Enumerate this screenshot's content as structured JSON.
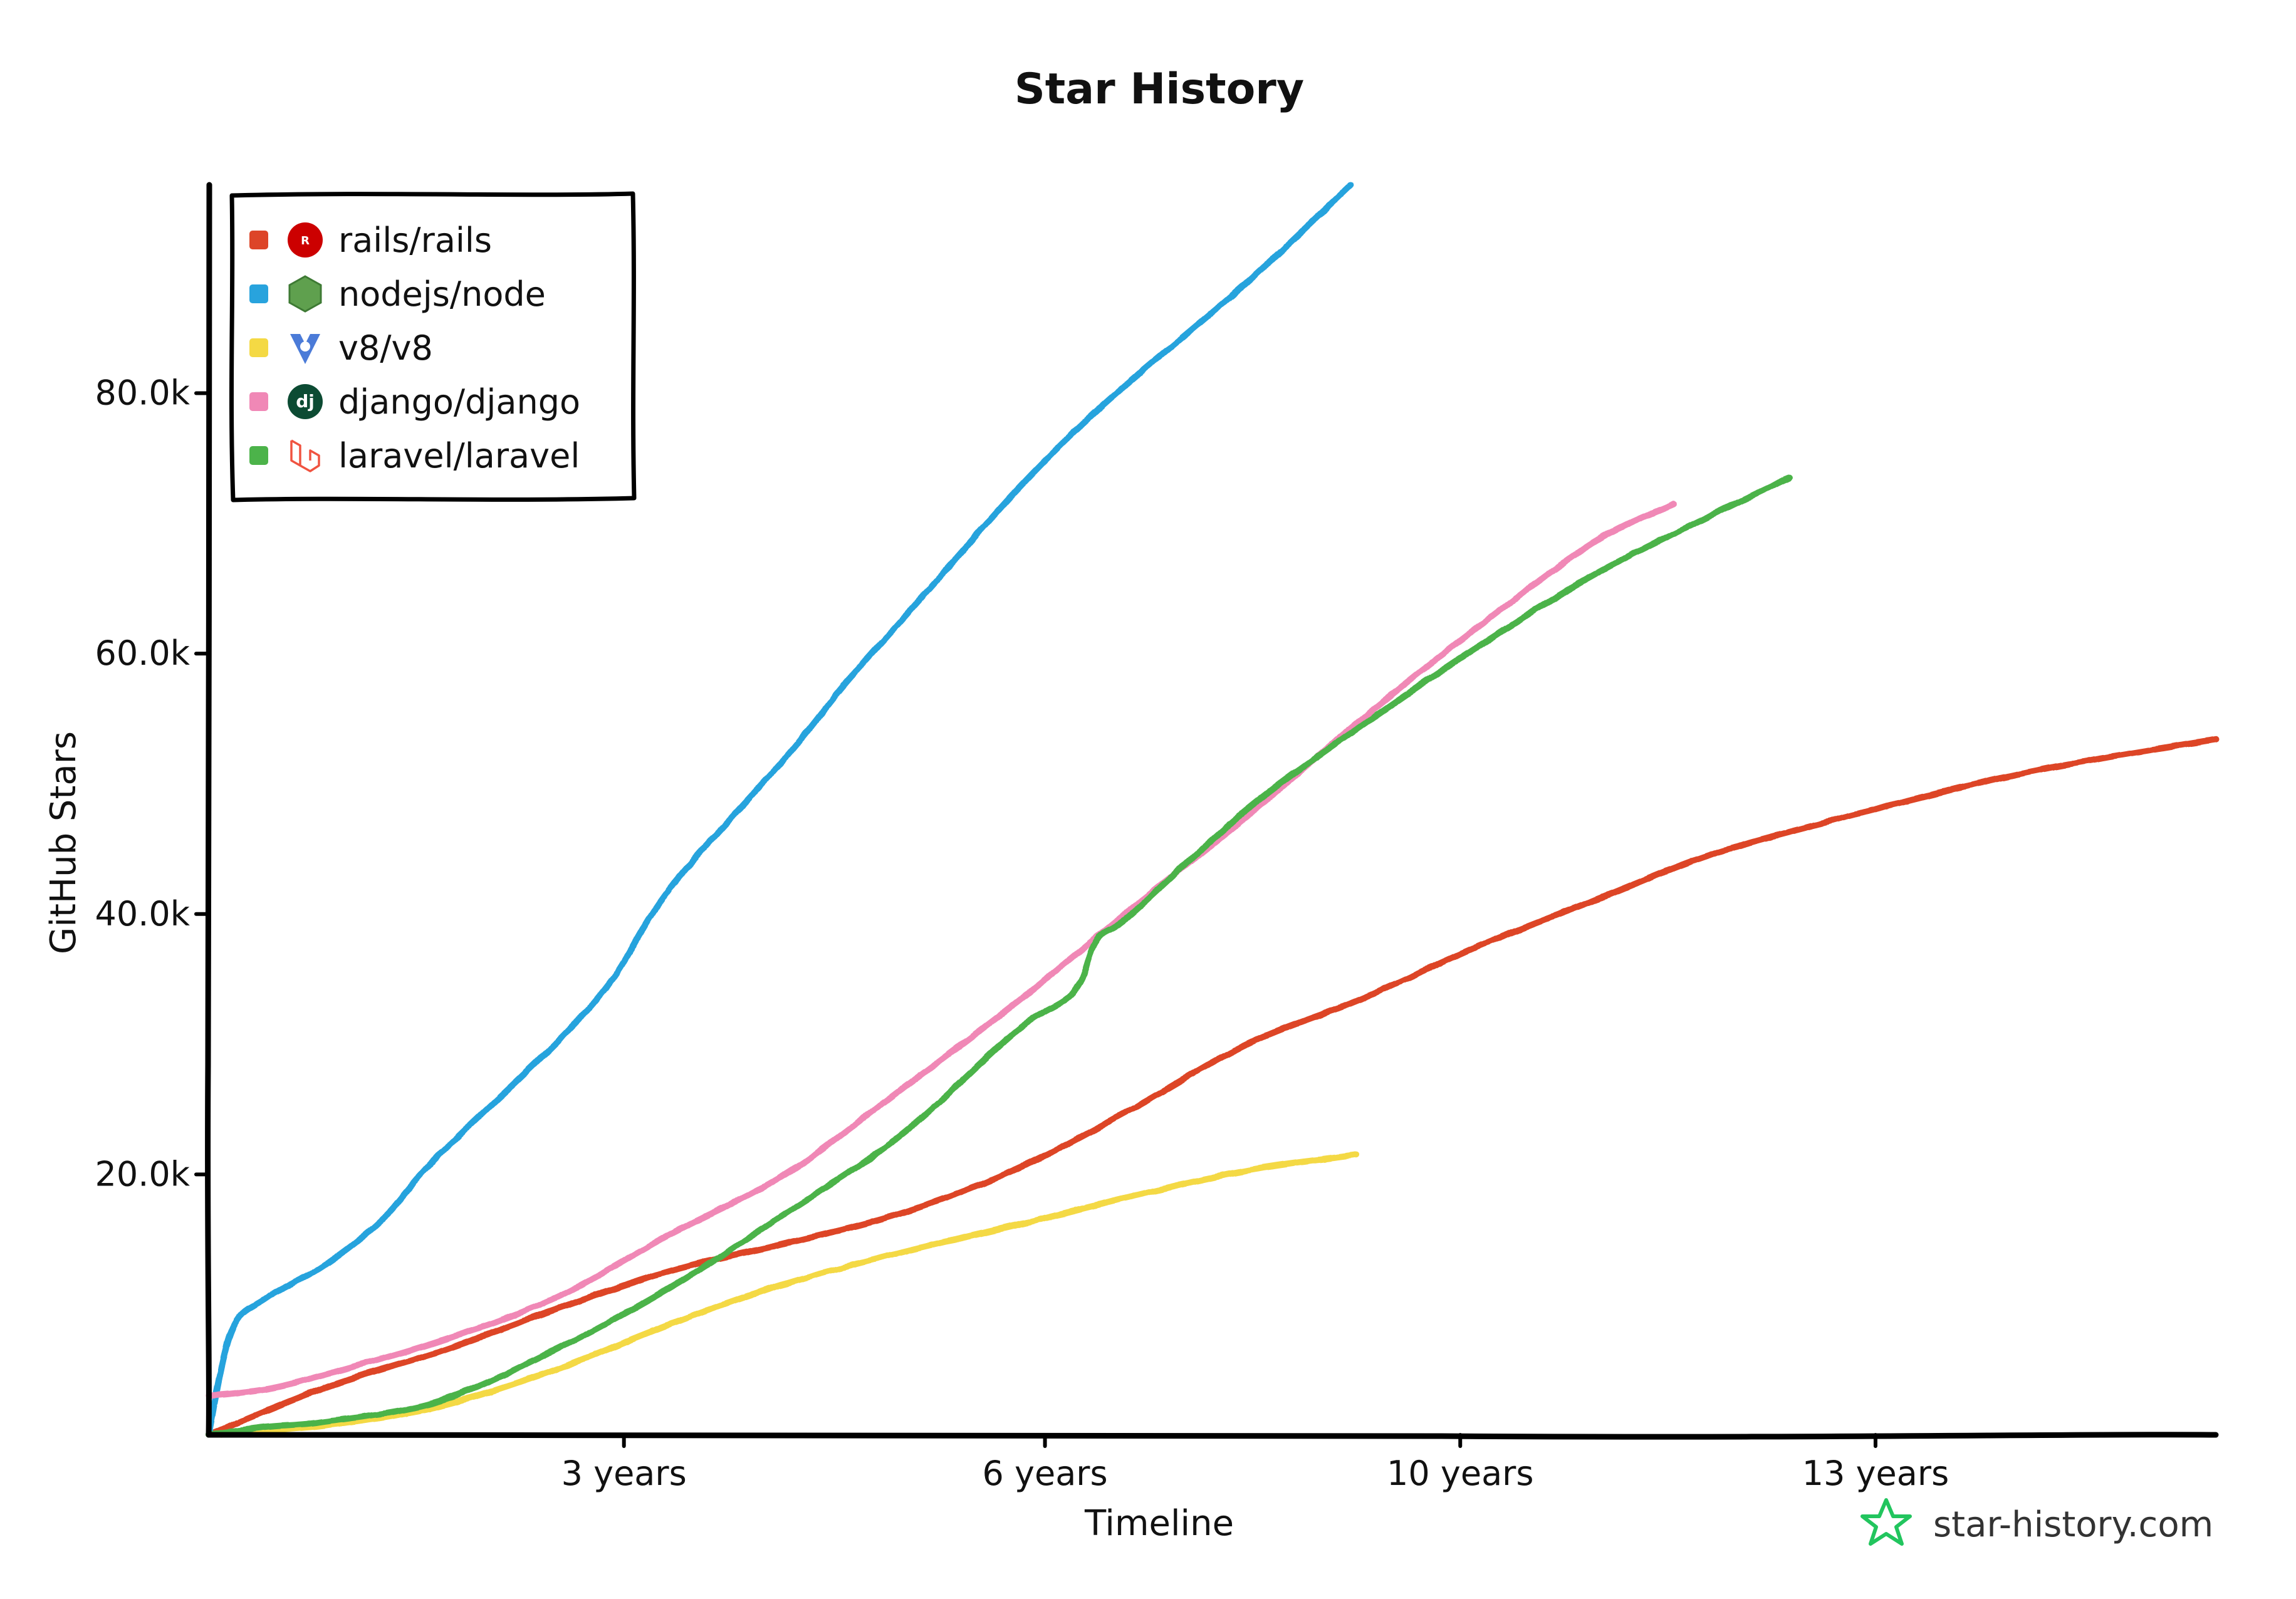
{
  "chart_data": {
    "type": "line",
    "title": "Star History",
    "xlabel": "Timeline",
    "ylabel": "GitHub Stars",
    "xlim": [
      0,
      17.4
    ],
    "ylim": [
      0,
      96000
    ],
    "x_ticks": [
      {
        "value": 3.6,
        "label": "3 years"
      },
      {
        "value": 7.25,
        "label": "6 years"
      },
      {
        "value": 10.85,
        "label": "10 years"
      },
      {
        "value": 14.45,
        "label": "13 years"
      }
    ],
    "y_ticks": [
      {
        "value": 20000,
        "label": "20.0k"
      },
      {
        "value": 40000,
        "label": "40.0k"
      },
      {
        "value": 60000,
        "label": "60.0k"
      },
      {
        "value": 80000,
        "label": "80.0k"
      }
    ],
    "grid": false,
    "legend_position": "top-left",
    "series": [
      {
        "name": "rails/rails",
        "color": "#dd4528",
        "icon": "rails-logo-icon",
        "points": [
          [
            0,
            0
          ],
          [
            1,
            3600
          ],
          [
            2,
            6400
          ],
          [
            3,
            9600
          ],
          [
            4,
            12600
          ],
          [
            5,
            14700
          ],
          [
            6,
            17000
          ],
          [
            7,
            20400
          ],
          [
            8,
            25000
          ],
          [
            9,
            30000
          ],
          [
            10,
            33500
          ],
          [
            11,
            37500
          ],
          [
            12,
            41000
          ],
          [
            13,
            44500
          ],
          [
            14,
            47000
          ],
          [
            15,
            49300
          ],
          [
            16,
            51300
          ],
          [
            17.4,
            53400
          ]
        ]
      },
      {
        "name": "nodejs/node",
        "color": "#28a3dd",
        "icon": "nodejs-logo-icon",
        "points": [
          [
            0,
            0
          ],
          [
            0.2,
            8000
          ],
          [
            0.5,
            10500
          ],
          [
            1,
            13000
          ],
          [
            1.5,
            16500
          ],
          [
            2,
            21500
          ],
          [
            3,
            30000
          ],
          [
            3.5,
            35000
          ],
          [
            4,
            42000
          ],
          [
            5,
            52000
          ],
          [
            5.5,
            57500
          ],
          [
            6,
            62500
          ],
          [
            6.5,
            67500
          ],
          [
            7,
            72500
          ],
          [
            7.5,
            77000
          ],
          [
            8,
            81000
          ],
          [
            9,
            88500
          ],
          [
            9.9,
            96000
          ]
        ]
      },
      {
        "name": "v8/v8",
        "color": "#f4d944",
        "icon": "v8-logo-icon",
        "points": [
          [
            0,
            0
          ],
          [
            1,
            700
          ],
          [
            2,
            2200
          ],
          [
            3,
            5000
          ],
          [
            4,
            8500
          ],
          [
            5,
            11600
          ],
          [
            6,
            14000
          ],
          [
            7,
            16100
          ],
          [
            8,
            18300
          ],
          [
            9,
            20300
          ],
          [
            9.95,
            21500
          ]
        ]
      },
      {
        "name": "django/django",
        "color": "#f088b6",
        "icon": "django-logo-icon",
        "points": [
          [
            0,
            3000
          ],
          [
            0.5,
            3500
          ],
          [
            1,
            4600
          ],
          [
            2,
            7200
          ],
          [
            3,
            10500
          ],
          [
            4,
            15400
          ],
          [
            5,
            20000
          ],
          [
            6,
            26500
          ],
          [
            7,
            33200
          ],
          [
            8,
            40400
          ],
          [
            9,
            47500
          ],
          [
            10,
            55000
          ],
          [
            11,
            62000
          ],
          [
            12,
            68500
          ],
          [
            12.7,
            71500
          ]
        ]
      },
      {
        "name": "laravel/laravel",
        "color": "#4cb34a",
        "icon": "laravel-logo-icon",
        "points": [
          [
            0,
            0
          ],
          [
            0.5,
            600
          ],
          [
            1,
            1000
          ],
          [
            2,
            2600
          ],
          [
            3,
            6500
          ],
          [
            4,
            11300
          ],
          [
            5,
            17000
          ],
          [
            6,
            23000
          ],
          [
            7,
            31000
          ],
          [
            7.5,
            34000
          ],
          [
            7.7,
            38000
          ],
          [
            8,
            40000
          ],
          [
            9,
            48000
          ],
          [
            10,
            54500
          ],
          [
            11,
            60500
          ],
          [
            12,
            66000
          ],
          [
            13,
            70500
          ],
          [
            13.7,
            73500
          ]
        ]
      }
    ]
  },
  "brand": {
    "text": "star-history.com",
    "icon": "star-history-logo-icon",
    "color": "#22c55e"
  }
}
